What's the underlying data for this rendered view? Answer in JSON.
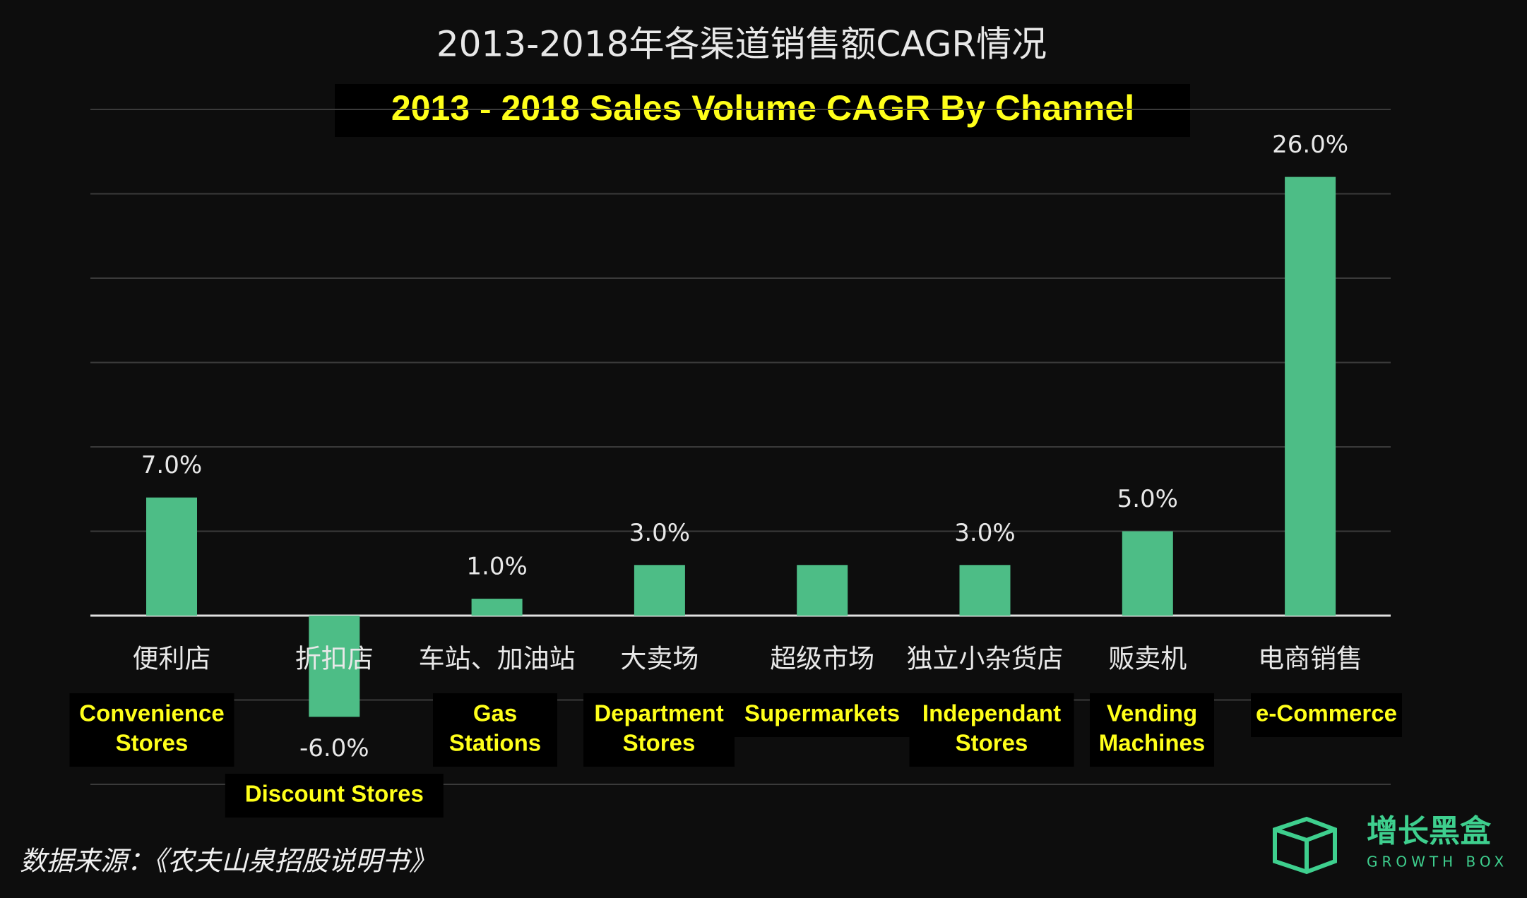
{
  "chart_data": {
    "type": "bar",
    "title": "2013-2018年各渠道销售额CAGR情况",
    "subtitle": "2013 - 2018 Sales Volume CAGR By Channel",
    "categories": [
      "便利店",
      "折扣店",
      "车站、加油站",
      "大卖场",
      "超级市场",
      "独立小杂货店",
      "贩卖机",
      "电商销售"
    ],
    "english_labels": [
      [
        "Convenience",
        "Stores"
      ],
      [
        "Discount Stores"
      ],
      [
        "Gas",
        "Stations"
      ],
      [
        "Department",
        "Stores"
      ],
      [
        "Supermarkets"
      ],
      [
        "Independant",
        "Stores"
      ],
      [
        "Vending",
        "Machines"
      ],
      [
        "e-Commerce"
      ]
    ],
    "values": [
      7,
      -6,
      1,
      3,
      3,
      3,
      5,
      26
    ],
    "value_labels": [
      "7.0%",
      "-6.0%",
      "1.0%",
      "3.0%",
      null,
      "3.0%",
      "5.0%",
      "26.0%"
    ],
    "color": "#4dbd86",
    "ylim": [
      -10,
      30
    ],
    "gridlines": [
      -10,
      -5,
      0,
      5,
      10,
      15,
      20,
      25,
      30
    ],
    "grid": true,
    "source": "数据来源：《农夫山泉招股说明书》",
    "logo": {
      "name": "增长黑盒",
      "tagline": "GROWTH BOX"
    }
  }
}
